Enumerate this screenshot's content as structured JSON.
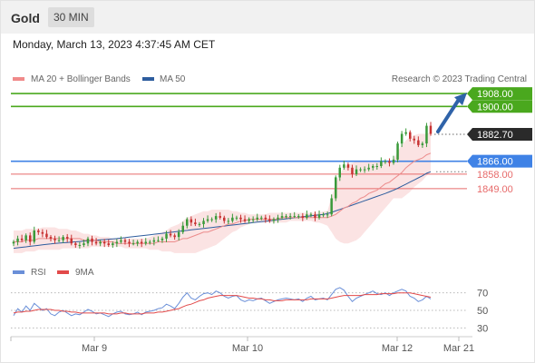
{
  "header": {
    "symbol": "Gold",
    "timeframe": "30 MIN"
  },
  "datetime": "Monday, March 13, 2023 4:37:45 AM CET",
  "legend": {
    "items": [
      {
        "label": "MA 20 + Bollinger Bands",
        "color": "#f08a8a"
      },
      {
        "label": "MA 50",
        "color": "#2e5d9e"
      }
    ],
    "credit": "Research © 2023 Trading Central"
  },
  "colors": {
    "up": "#3a9a3a",
    "down": "#c83232",
    "target": "#4aa81e",
    "pivot": "#3f82e6",
    "support": "#e76a6a",
    "current": "#2a2a2a",
    "arrow": "#2f63a9",
    "band": "#fbe3e3",
    "rsi": "#6a8fd8",
    "rsi_ma": "#e24a4a"
  },
  "chart_data": [
    {
      "type": "line",
      "title": "",
      "xlabel": "",
      "ylabel": "",
      "x_ticks": [
        "Mar 9",
        "Mar 10",
        "Mar 12",
        "Mar 21"
      ],
      "y_range": [
        1805,
        1912
      ],
      "levels": [
        {
          "value": 1908.0,
          "label": "1908.00",
          "kind": "target"
        },
        {
          "value": 1900.0,
          "label": "1900.00",
          "kind": "target"
        },
        {
          "value": 1882.7,
          "label": "1882.70",
          "kind": "current"
        },
        {
          "value": 1866.0,
          "label": "1866.00",
          "kind": "pivot"
        },
        {
          "value": 1858.0,
          "label": "1858.00",
          "kind": "support"
        },
        {
          "value": 1849.0,
          "label": "1849.00",
          "kind": "support"
        }
      ],
      "price_close": [
        1816,
        1818,
        1817,
        1820,
        1816,
        1823,
        1822,
        1821,
        1819,
        1818,
        1817,
        1817,
        1819,
        1818,
        1815,
        1814,
        1814,
        1815,
        1818,
        1816,
        1815,
        1816,
        1815,
        1814,
        1815,
        1816,
        1817,
        1816,
        1815,
        1815,
        1816,
        1815,
        1816,
        1816,
        1817,
        1817,
        1818,
        1821,
        1820,
        1819,
        1822,
        1826,
        1830,
        1828,
        1827,
        1827,
        1829,
        1830,
        1830,
        1832,
        1831,
        1829,
        1829,
        1831,
        1831,
        1830,
        1829,
        1830,
        1830,
        1831,
        1831,
        1830,
        1829,
        1830,
        1831,
        1832,
        1832,
        1832,
        1832,
        1832,
        1831,
        1833,
        1833,
        1831,
        1833,
        1833,
        1833,
        1843,
        1856,
        1862,
        1864,
        1862,
        1858,
        1861,
        1861,
        1861,
        1862,
        1863,
        1863,
        1866,
        1866,
        1865,
        1867,
        1877,
        1883,
        1884,
        1880,
        1879,
        1876,
        1877,
        1888,
        1883
      ],
      "ma20": [
        1816,
        1816,
        1816,
        1817,
        1817,
        1817,
        1818,
        1818,
        1818,
        1818,
        1818,
        1818,
        1818,
        1818,
        1818,
        1818,
        1818,
        1817,
        1817,
        1817,
        1817,
        1816,
        1816,
        1816,
        1816,
        1815,
        1815,
        1815,
        1815,
        1815,
        1815,
        1815,
        1815,
        1815,
        1815,
        1816,
        1816,
        1816,
        1816,
        1816,
        1817,
        1818,
        1818,
        1819,
        1820,
        1821,
        1822,
        1822,
        1823,
        1824,
        1825,
        1826,
        1827,
        1827,
        1828,
        1829,
        1829,
        1830,
        1830,
        1830,
        1830,
        1830,
        1830,
        1830,
        1830,
        1831,
        1831,
        1831,
        1831,
        1831,
        1831,
        1831,
        1831,
        1831,
        1831,
        1831,
        1831,
        1832,
        1833,
        1835,
        1837,
        1838,
        1840,
        1841,
        1843,
        1844,
        1846,
        1847,
        1848,
        1850,
        1852,
        1853,
        1855,
        1857,
        1859,
        1862,
        1864,
        1866,
        1867,
        1868,
        1870,
        1871
      ],
      "bb_upper": [
        1823,
        1823,
        1823,
        1824,
        1824,
        1824,
        1824,
        1825,
        1825,
        1825,
        1825,
        1824,
        1824,
        1824,
        1823,
        1823,
        1822,
        1821,
        1821,
        1820,
        1820,
        1819,
        1819,
        1819,
        1818,
        1818,
        1818,
        1818,
        1818,
        1818,
        1818,
        1818,
        1818,
        1819,
        1820,
        1821,
        1822,
        1823,
        1825,
        1826,
        1827,
        1829,
        1831,
        1832,
        1833,
        1834,
        1835,
        1835,
        1836,
        1836,
        1836,
        1836,
        1836,
        1835,
        1835,
        1834,
        1834,
        1833,
        1833,
        1833,
        1833,
        1833,
        1834,
        1834,
        1834,
        1834,
        1834,
        1834,
        1834,
        1834,
        1834,
        1834,
        1834,
        1834,
        1834,
        1835,
        1835,
        1844,
        1852,
        1858,
        1862,
        1864,
        1865,
        1866,
        1866,
        1866,
        1866,
        1866,
        1866,
        1866,
        1866,
        1866,
        1867,
        1872,
        1876,
        1879,
        1881,
        1882,
        1883,
        1883,
        1883,
        1884
      ],
      "bb_lower": [
        1809,
        1809,
        1809,
        1810,
        1810,
        1810,
        1811,
        1811,
        1811,
        1811,
        1811,
        1811,
        1812,
        1812,
        1812,
        1812,
        1812,
        1812,
        1812,
        1813,
        1813,
        1813,
        1813,
        1813,
        1813,
        1813,
        1813,
        1812,
        1812,
        1812,
        1812,
        1812,
        1812,
        1811,
        1811,
        1811,
        1810,
        1810,
        1810,
        1809,
        1809,
        1809,
        1809,
        1809,
        1809,
        1810,
        1811,
        1812,
        1813,
        1814,
        1816,
        1818,
        1820,
        1822,
        1823,
        1825,
        1826,
        1827,
        1828,
        1828,
        1828,
        1828,
        1828,
        1828,
        1828,
        1828,
        1828,
        1829,
        1829,
        1829,
        1829,
        1829,
        1829,
        1828,
        1828,
        1827,
        1826,
        1822,
        1818,
        1816,
        1815,
        1815,
        1816,
        1817,
        1819,
        1822,
        1825,
        1828,
        1831,
        1834,
        1837,
        1840,
        1843,
        1843,
        1843,
        1845,
        1847,
        1850,
        1852,
        1854,
        1857,
        1859
      ],
      "ma50": [
        1812,
        1812.3,
        1812.6,
        1812.9,
        1813.2,
        1813.5,
        1813.8,
        1814.1,
        1814.4,
        1814.7,
        1815,
        1815.2,
        1815.4,
        1815.6,
        1815.8,
        1816,
        1816.2,
        1816.4,
        1816.6,
        1816.8,
        1817,
        1817.2,
        1817.4,
        1817.6,
        1817.8,
        1818,
        1818.3,
        1818.6,
        1818.9,
        1819.2,
        1819.5,
        1819.8,
        1820.1,
        1820.4,
        1820.7,
        1821,
        1821.3,
        1821.6,
        1821.9,
        1822.2,
        1822.5,
        1822.8,
        1823.1,
        1823.4,
        1823.7,
        1824,
        1824.3,
        1824.6,
        1824.9,
        1825.2,
        1825.5,
        1825.8,
        1826.1,
        1826.4,
        1826.7,
        1827,
        1827.3,
        1827.6,
        1827.9,
        1828.2,
        1828.5,
        1828.8,
        1829.1,
        1829.4,
        1829.7,
        1830,
        1830.3,
        1830.6,
        1830.9,
        1831.2,
        1831.5,
        1831.8,
        1832.1,
        1832.4,
        1832.7,
        1833,
        1833.5,
        1834.3,
        1835.2,
        1836.1,
        1837,
        1837.9,
        1838.8,
        1839.7,
        1840.6,
        1841.5,
        1842.4,
        1843.3,
        1844.2,
        1845.1,
        1846,
        1847,
        1848,
        1849.2,
        1850.5,
        1851.8,
        1853.1,
        1854.4,
        1855.7,
        1857,
        1858.5,
        1859.5
      ],
      "projection": {
        "label_targets": [
          "1900.00",
          "1908.00"
        ]
      }
    },
    {
      "type": "line",
      "title": "",
      "legend": [
        "RSI",
        "9MA"
      ],
      "yticks": [
        30,
        50,
        70
      ],
      "y_range": [
        20,
        80
      ],
      "rsi": [
        44,
        52,
        48,
        55,
        50,
        58,
        54,
        50,
        52,
        46,
        44,
        48,
        50,
        47,
        44,
        46,
        45,
        48,
        51,
        49,
        46,
        47,
        45,
        43,
        46,
        48,
        49,
        46,
        45,
        46,
        48,
        45,
        48,
        49,
        50,
        52,
        53,
        57,
        55,
        52,
        58,
        65,
        70,
        64,
        62,
        66,
        69,
        70,
        68,
        72,
        70,
        66,
        64,
        66,
        67,
        62,
        60,
        62,
        61,
        63,
        64,
        61,
        58,
        60,
        62,
        63,
        64,
        63,
        62,
        63,
        60,
        64,
        66,
        62,
        63,
        64,
        62,
        68,
        74,
        76,
        73,
        66,
        60,
        64,
        66,
        68,
        70,
        72,
        69,
        68,
        70,
        67,
        70,
        72,
        74,
        72,
        66,
        64,
        60,
        62,
        66,
        63
      ],
      "ma9": [
        47,
        48,
        48,
        49,
        49,
        50,
        51,
        51,
        51,
        51,
        50,
        50,
        49,
        49,
        48,
        48,
        47,
        47,
        47,
        47,
        47,
        47,
        47,
        46,
        46,
        46,
        47,
        47,
        46,
        46,
        46,
        46,
        47,
        47,
        47,
        48,
        48,
        49,
        50,
        51,
        52,
        54,
        56,
        57,
        59,
        61,
        62,
        64,
        65,
        66,
        67,
        67,
        67,
        67,
        67,
        66,
        65,
        64,
        64,
        63,
        63,
        62,
        62,
        61,
        61,
        61,
        62,
        62,
        62,
        62,
        62,
        62,
        63,
        63,
        63,
        63,
        63,
        64,
        65,
        66,
        67,
        67,
        67,
        67,
        67,
        68,
        68,
        68,
        68,
        69,
        69,
        69,
        69,
        70,
        70,
        70,
        70,
        69,
        68,
        67,
        66,
        65
      ]
    }
  ]
}
